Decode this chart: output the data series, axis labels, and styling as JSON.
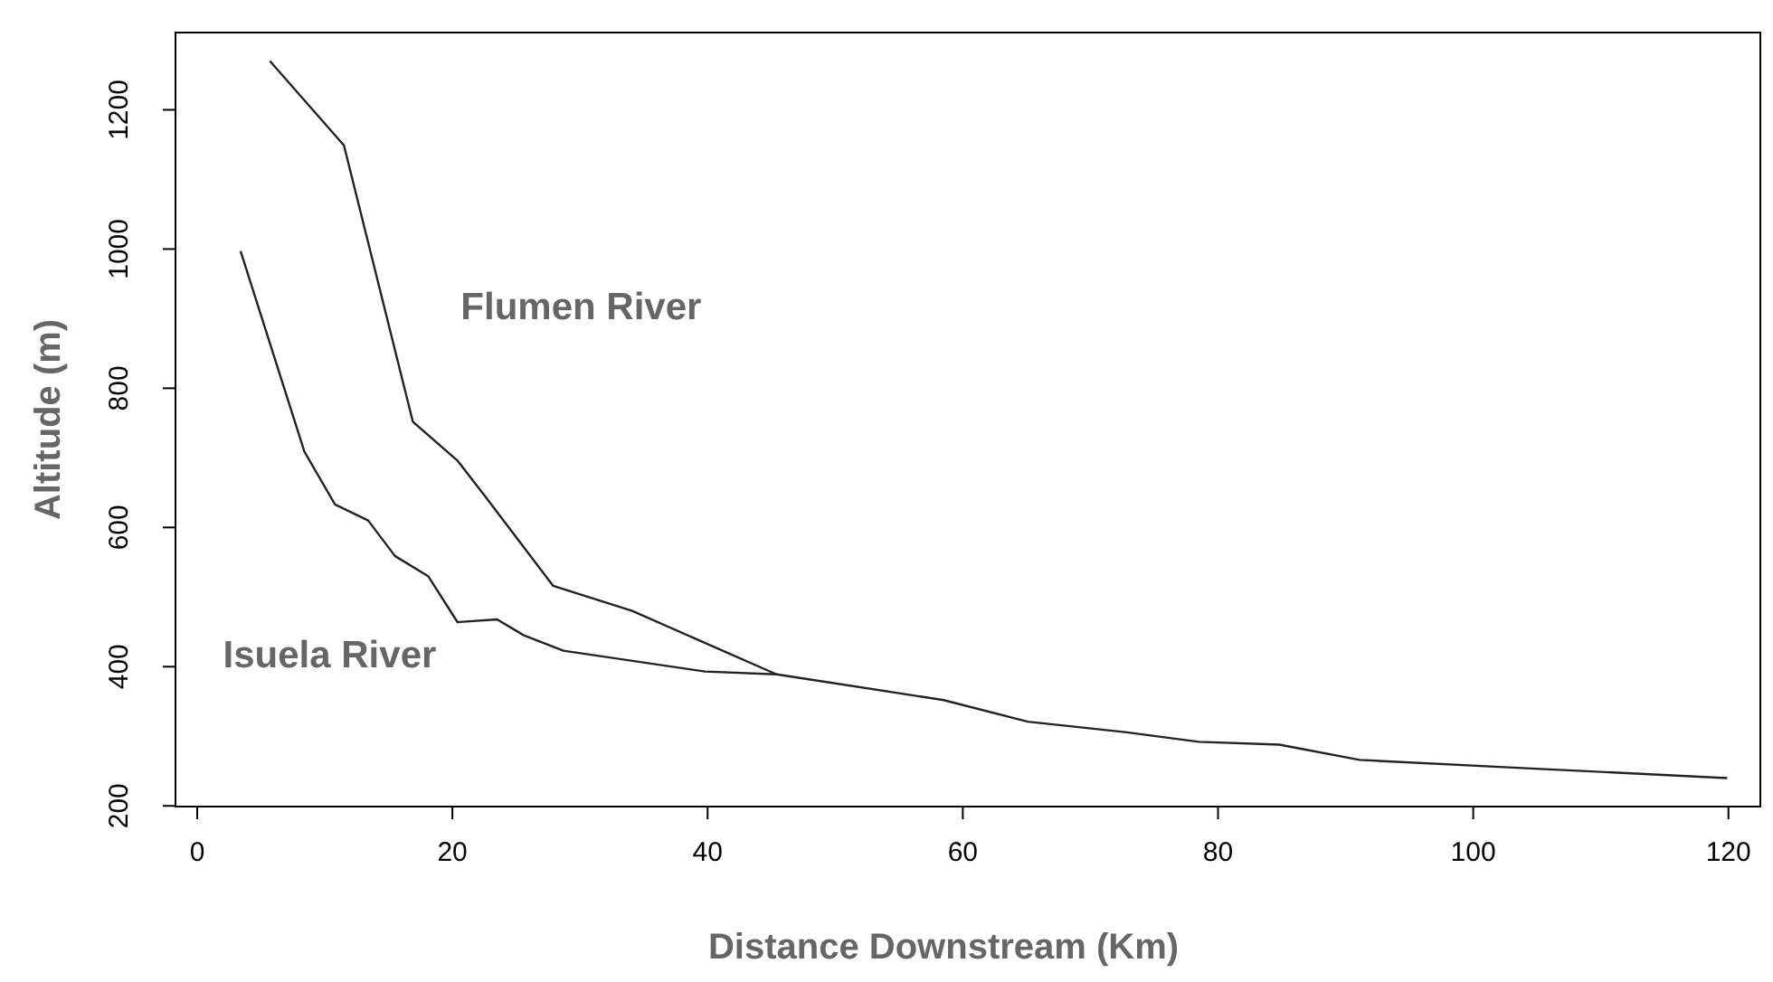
{
  "chart_data": {
    "type": "line",
    "xlabel": "Distance Downstream (Km)",
    "ylabel": "Altitude (m)",
    "series": [
      {
        "name": "Flumen River",
        "color": "#222222",
        "x": [
          5.7,
          11.5,
          16.9,
          20.4,
          22.6,
          27.9,
          34.1,
          45.4
        ],
        "values": [
          1270,
          1149,
          752,
          696,
          644,
          516,
          480,
          389
        ]
      },
      {
        "name": "Isuela River",
        "color": "#222222",
        "x": [
          3.4,
          8.4,
          10.8,
          13.4,
          15.5,
          18.1,
          20.4,
          23.5,
          25.6,
          28.7,
          39.8,
          45.4,
          58.5,
          65.1,
          72.7,
          78.5,
          84.8,
          91.1,
          104.2,
          119.9
        ],
        "values": [
          997,
          709,
          633,
          610,
          559,
          530,
          464,
          468,
          445,
          423,
          393,
          389,
          352,
          321,
          306,
          292,
          288,
          266,
          254,
          240
        ]
      }
    ],
    "xlim": [
      -1.7,
      122.5
    ],
    "ylim": [
      199,
      1311
    ],
    "xticks": [
      0,
      20,
      40,
      60,
      80,
      100,
      120
    ],
    "yticks": [
      200,
      400,
      600,
      800,
      1000,
      1200
    ],
    "grid": false,
    "marker": "none",
    "line_style": "solid"
  }
}
